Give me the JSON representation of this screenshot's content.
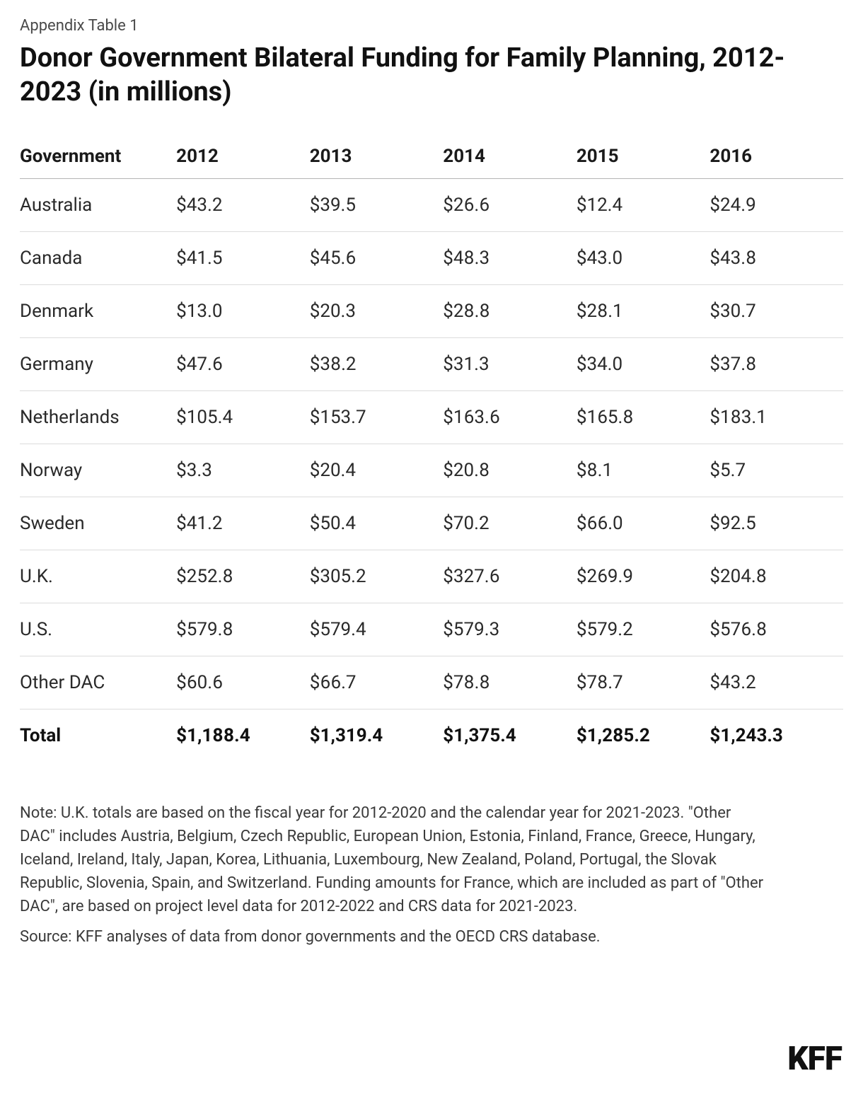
{
  "caption": "Appendix Table 1",
  "title": "Donor Government Bilateral Funding for Family Planning, 2012-2023 (in millions)",
  "table": {
    "columns": [
      "Government",
      "2012",
      "2013",
      "2014",
      "2015",
      "2016"
    ],
    "rows": [
      [
        "Australia",
        "$43.2",
        "$39.5",
        "$26.6",
        "$12.4",
        "$24.9"
      ],
      [
        "Canada",
        "$41.5",
        "$45.6",
        "$48.3",
        "$43.0",
        "$43.8"
      ],
      [
        "Denmark",
        "$13.0",
        "$20.3",
        "$28.8",
        "$28.1",
        "$30.7"
      ],
      [
        "Germany",
        "$47.6",
        "$38.2",
        "$31.3",
        "$34.0",
        "$37.8"
      ],
      [
        "Netherlands",
        "$105.4",
        "$153.7",
        "$163.6",
        "$165.8",
        "$183.1"
      ],
      [
        "Norway",
        "$3.3",
        "$20.4",
        "$20.8",
        "$8.1",
        "$5.7"
      ],
      [
        "Sweden",
        "$41.2",
        "$50.4",
        "$70.2",
        "$66.0",
        "$92.5"
      ],
      [
        "U.K.",
        "$252.8",
        "$305.2",
        "$327.6",
        "$269.9",
        "$204.8"
      ],
      [
        "U.S.",
        "$579.8",
        "$579.4",
        "$579.3",
        "$579.2",
        "$576.8"
      ],
      [
        "Other DAC",
        "$60.6",
        "$66.7",
        "$78.8",
        "$78.7",
        "$43.2"
      ]
    ],
    "total_row": [
      "Total",
      "$1,188.4",
      "$1,319.4",
      "$1,375.4",
      "$1,285.2",
      "$1,243.3"
    ],
    "header_fontsize": 26,
    "cell_fontsize": 26,
    "border_color": "#dcdcdc",
    "header_border_color": "#b5b5b5",
    "text_color": "#2a2a2a",
    "background_color": "#ffffff"
  },
  "note": "Note: U.K. totals are based on the fiscal year for 2012-2020 and the calendar year for 2021-2023. \"Other DAC\" includes Austria, Belgium, Czech Republic, European Union, Estonia, Finland, France, Greece, Hungary, Iceland, Ireland, Italy, Japan, Korea, Lithuania, Luxembourg, New Zealand, Poland, Portugal, the Slovak Republic, Slovenia, Spain, and Switzerland. Funding amounts for France, which are included as part of \"Other DAC\", are based on project level data for 2012-2022 and CRS data for 2021-2023.",
  "source": "Source: KFF analyses of data from donor governments and the OECD CRS database.",
  "logo": "KFF",
  "colors": {
    "text_primary": "#1a1a1a",
    "text_secondary": "#3a3a3a",
    "background": "#ffffff"
  }
}
